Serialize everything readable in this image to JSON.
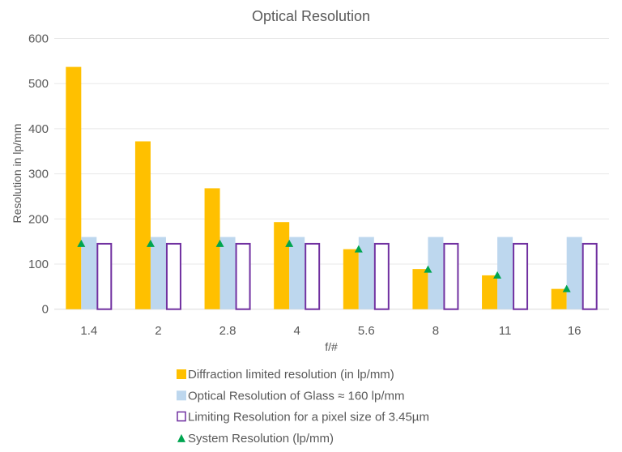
{
  "chart_data": {
    "type": "bar",
    "title": "Optical Resolution",
    "xlabel": "f/#",
    "ylabel": "Resolution in lp/mm",
    "ylim": [
      0,
      600
    ],
    "yticks": [
      "0",
      "100",
      "200",
      "300",
      "400",
      "500",
      "600"
    ],
    "grid": true,
    "legend_position": "bottom",
    "categories": [
      "1.4",
      "2",
      "2.8",
      "4",
      "5.6",
      "8",
      "11",
      "16"
    ],
    "series": [
      {
        "name": "Diffraction limited resolution (in lp/mm)",
        "kind": "bar",
        "color": "#FFC000",
        "values": [
          537,
          372,
          268,
          193,
          133,
          89,
          75,
          45
        ]
      },
      {
        "name": "Optical Resolution of Glass ≈ 160 lp/mm",
        "kind": "bar",
        "color": "#BDD7EE",
        "values": [
          160,
          160,
          160,
          160,
          160,
          160,
          160,
          160
        ]
      },
      {
        "name": "Limiting Resolution for a pixel size of 3.45µm",
        "kind": "bar-outline",
        "color": "#7030A0",
        "values": [
          145,
          145,
          145,
          145,
          145,
          145,
          145,
          145
        ]
      },
      {
        "name": "System Resolution (lp/mm)",
        "kind": "marker",
        "color": "#00A550",
        "values": [
          145,
          145,
          145,
          145,
          133,
          88,
          75,
          45
        ]
      }
    ]
  }
}
